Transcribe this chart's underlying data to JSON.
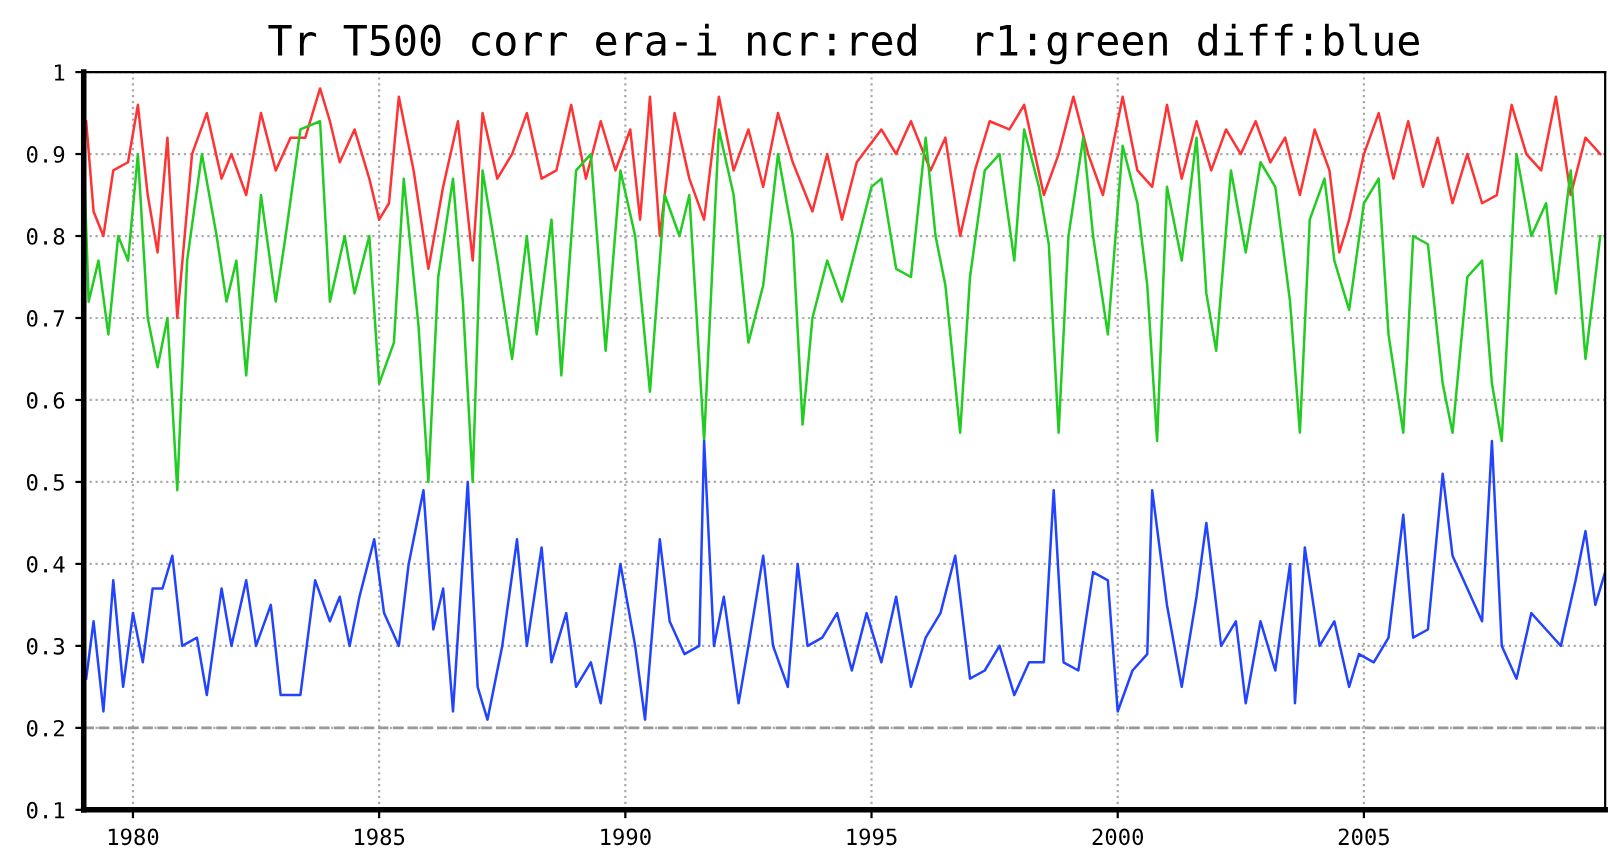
{
  "chart_data": {
    "type": "line",
    "title": "Tr T500 corr era-i ncr:red  r1:green diff:blue",
    "xlim": [
      1979,
      2009.9
    ],
    "ylim": [
      0.1,
      1
    ],
    "xticks": [
      1980,
      1985,
      1990,
      1995,
      2000,
      2005
    ],
    "yticks": [
      0.1,
      0.2,
      0.3,
      0.4,
      0.5,
      0.6,
      0.7,
      0.8,
      0.9,
      1
    ],
    "grid": true,
    "line_style": "solid",
    "marker": "none",
    "ref_lines": [
      {
        "axis": "y",
        "value": 0.2,
        "color": "#999999",
        "line_style": "dashed"
      }
    ],
    "series": [
      {
        "color": "#ff3333",
        "x": [
          1979.05,
          1979.2,
          1979.4,
          1979.6,
          1979.9,
          1980.1,
          1980.3,
          1980.5,
          1980.7,
          1980.9,
          1981.2,
          1981.5,
          1981.8,
          1982.0,
          1982.3,
          1982.6,
          1982.9,
          1983.2,
          1983.5,
          1983.8,
          1984.0,
          1984.2,
          1984.5,
          1984.8,
          1985.0,
          1985.2,
          1985.4,
          1985.7,
          1986.0,
          1986.3,
          1986.6,
          1986.9,
          1987.1,
          1987.4,
          1987.7,
          1988.0,
          1988.3,
          1988.6,
          1988.9,
          1989.2,
          1989.5,
          1989.8,
          1990.1,
          1990.3,
          1990.5,
          1990.7,
          1991.0,
          1991.3,
          1991.6,
          1991.9,
          1992.2,
          1992.5,
          1992.8,
          1993.1,
          1993.4,
          1993.8,
          1994.1,
          1994.4,
          1994.7,
          1995.2,
          1995.5,
          1995.8,
          1996.2,
          1996.5,
          1996.8,
          1997.1,
          1997.4,
          1997.8,
          1998.1,
          1998.5,
          1998.8,
          1999.1,
          1999.4,
          1999.7,
          2000.1,
          2000.4,
          2000.7,
          2001.0,
          2001.3,
          2001.6,
          2001.9,
          2002.2,
          2002.5,
          2002.8,
          2003.1,
          2003.4,
          2003.7,
          2004.0,
          2004.3,
          2004.5,
          2004.7,
          2005.0,
          2005.3,
          2005.6,
          2005.9,
          2006.2,
          2006.5,
          2006.8,
          2007.1,
          2007.4,
          2007.7,
          2008.0,
          2008.3,
          2008.6,
          2008.9,
          2009.2,
          2009.5,
          2009.8
        ],
        "values": [
          0.94,
          0.83,
          0.8,
          0.88,
          0.89,
          0.96,
          0.85,
          0.78,
          0.92,
          0.7,
          0.9,
          0.95,
          0.87,
          0.9,
          0.85,
          0.95,
          0.88,
          0.92,
          0.92,
          0.98,
          0.94,
          0.89,
          0.93,
          0.87,
          0.82,
          0.84,
          0.97,
          0.88,
          0.76,
          0.86,
          0.94,
          0.77,
          0.95,
          0.87,
          0.9,
          0.95,
          0.87,
          0.88,
          0.96,
          0.87,
          0.94,
          0.88,
          0.93,
          0.82,
          0.97,
          0.8,
          0.95,
          0.87,
          0.82,
          0.97,
          0.88,
          0.93,
          0.86,
          0.95,
          0.89,
          0.83,
          0.9,
          0.82,
          0.89,
          0.93,
          0.9,
          0.94,
          0.88,
          0.92,
          0.8,
          0.88,
          0.94,
          0.93,
          0.96,
          0.85,
          0.9,
          0.97,
          0.9,
          0.85,
          0.97,
          0.88,
          0.86,
          0.96,
          0.87,
          0.94,
          0.88,
          0.93,
          0.9,
          0.94,
          0.89,
          0.92,
          0.85,
          0.93,
          0.88,
          0.78,
          0.82,
          0.9,
          0.95,
          0.87,
          0.94,
          0.86,
          0.92,
          0.84,
          0.9,
          0.84,
          0.85,
          0.96,
          0.9,
          0.88,
          0.97,
          0.85,
          0.92,
          0.9
        ]
      },
      {
        "color": "#22cc22",
        "x": [
          1979.0,
          1979.1,
          1979.3,
          1979.5,
          1979.7,
          1979.9,
          1980.1,
          1980.3,
          1980.5,
          1980.7,
          1980.9,
          1981.1,
          1981.4,
          1981.7,
          1981.9,
          1982.1,
          1982.3,
          1982.6,
          1982.9,
          1983.1,
          1983.4,
          1983.8,
          1984.0,
          1984.3,
          1984.5,
          1984.8,
          1985.0,
          1985.3,
          1985.5,
          1985.8,
          1986.0,
          1986.2,
          1986.5,
          1986.7,
          1986.9,
          1987.1,
          1987.4,
          1987.7,
          1988.0,
          1988.2,
          1988.5,
          1988.7,
          1989.0,
          1989.3,
          1989.6,
          1989.9,
          1990.2,
          1990.5,
          1990.8,
          1991.1,
          1991.3,
          1991.6,
          1991.9,
          1992.2,
          1992.5,
          1992.8,
          1993.1,
          1993.4,
          1993.6,
          1993.8,
          1994.1,
          1994.4,
          1994.7,
          1995.0,
          1995.2,
          1995.5,
          1995.8,
          1996.1,
          1996.3,
          1996.5,
          1996.8,
          1997.0,
          1997.3,
          1997.6,
          1997.9,
          1998.1,
          1998.4,
          1998.6,
          1998.8,
          1999.0,
          1999.3,
          1999.5,
          1999.8,
          2000.1,
          2000.4,
          2000.6,
          2000.8,
          2001.0,
          2001.3,
          2001.6,
          2001.8,
          2002.0,
          2002.3,
          2002.6,
          2002.9,
          2003.2,
          2003.5,
          2003.7,
          2003.9,
          2004.2,
          2004.4,
          2004.7,
          2005.0,
          2005.3,
          2005.5,
          2005.8,
          2006.0,
          2006.3,
          2006.6,
          2006.8,
          2007.1,
          2007.4,
          2007.6,
          2007.8,
          2008.1,
          2008.4,
          2008.7,
          2008.9,
          2009.2,
          2009.5,
          2009.8
        ],
        "values": [
          0.9,
          0.72,
          0.77,
          0.68,
          0.8,
          0.77,
          0.9,
          0.7,
          0.64,
          0.7,
          0.49,
          0.77,
          0.9,
          0.8,
          0.72,
          0.77,
          0.63,
          0.85,
          0.72,
          0.8,
          0.93,
          0.94,
          0.72,
          0.8,
          0.73,
          0.8,
          0.62,
          0.67,
          0.87,
          0.69,
          0.5,
          0.75,
          0.87,
          0.72,
          0.5,
          0.88,
          0.77,
          0.65,
          0.8,
          0.68,
          0.82,
          0.63,
          0.88,
          0.9,
          0.66,
          0.88,
          0.8,
          0.61,
          0.85,
          0.8,
          0.85,
          0.55,
          0.93,
          0.85,
          0.67,
          0.74,
          0.9,
          0.8,
          0.57,
          0.7,
          0.77,
          0.72,
          0.79,
          0.86,
          0.87,
          0.76,
          0.75,
          0.92,
          0.8,
          0.74,
          0.56,
          0.75,
          0.88,
          0.9,
          0.77,
          0.93,
          0.86,
          0.79,
          0.56,
          0.8,
          0.92,
          0.8,
          0.68,
          0.91,
          0.84,
          0.74,
          0.55,
          0.86,
          0.77,
          0.92,
          0.73,
          0.66,
          0.88,
          0.78,
          0.89,
          0.86,
          0.72,
          0.56,
          0.82,
          0.87,
          0.77,
          0.71,
          0.84,
          0.87,
          0.68,
          0.56,
          0.8,
          0.79,
          0.62,
          0.56,
          0.75,
          0.77,
          0.62,
          0.55,
          0.9,
          0.8,
          0.84,
          0.73,
          0.88,
          0.65,
          0.8
        ]
      },
      {
        "color": "#2244ff",
        "x": [
          1979.05,
          1979.2,
          1979.4,
          1979.6,
          1979.8,
          1980.0,
          1980.2,
          1980.4,
          1980.6,
          1980.8,
          1981.0,
          1981.3,
          1981.5,
          1981.8,
          1982.0,
          1982.3,
          1982.5,
          1982.8,
          1983.0,
          1983.4,
          1983.7,
          1984.0,
          1984.2,
          1984.4,
          1984.6,
          1984.9,
          1985.1,
          1985.4,
          1985.6,
          1985.9,
          1986.1,
          1986.3,
          1986.5,
          1986.8,
          1987.0,
          1987.2,
          1987.5,
          1987.8,
          1988.0,
          1988.3,
          1988.5,
          1988.8,
          1989.0,
          1989.3,
          1989.5,
          1989.9,
          1990.2,
          1990.4,
          1990.7,
          1990.9,
          1991.2,
          1991.5,
          1991.6,
          1991.8,
          1992.0,
          1992.3,
          1992.5,
          1992.8,
          1993.0,
          1993.3,
          1993.5,
          1993.7,
          1994.0,
          1994.3,
          1994.6,
          1994.9,
          1995.2,
          1995.5,
          1995.8,
          1996.1,
          1996.4,
          1996.7,
          1997.0,
          1997.3,
          1997.6,
          1997.9,
          1998.2,
          1998.5,
          1998.7,
          1998.9,
          1999.2,
          1999.5,
          1999.8,
          2000.0,
          2000.3,
          2000.6,
          2000.7,
          2001.0,
          2001.3,
          2001.6,
          2001.8,
          2002.1,
          2002.4,
          2002.6,
          2002.9,
          2003.2,
          2003.5,
          2003.6,
          2003.8,
          2004.1,
          2004.4,
          2004.7,
          2004.9,
          2005.2,
          2005.5,
          2005.8,
          2006.0,
          2006.3,
          2006.6,
          2006.8,
          2007.1,
          2007.4,
          2007.6,
          2007.8,
          2008.1,
          2008.4,
          2008.7,
          2009.0,
          2009.3,
          2009.5,
          2009.7,
          2009.9
        ],
        "values": [
          0.26,
          0.33,
          0.22,
          0.38,
          0.25,
          0.34,
          0.28,
          0.37,
          0.37,
          0.41,
          0.3,
          0.31,
          0.24,
          0.37,
          0.3,
          0.38,
          0.3,
          0.35,
          0.24,
          0.24,
          0.38,
          0.33,
          0.36,
          0.3,
          0.36,
          0.43,
          0.34,
          0.3,
          0.4,
          0.49,
          0.32,
          0.37,
          0.22,
          0.5,
          0.25,
          0.21,
          0.3,
          0.43,
          0.3,
          0.42,
          0.28,
          0.34,
          0.25,
          0.28,
          0.23,
          0.4,
          0.3,
          0.21,
          0.43,
          0.33,
          0.29,
          0.3,
          0.55,
          0.3,
          0.36,
          0.23,
          0.3,
          0.41,
          0.3,
          0.25,
          0.4,
          0.3,
          0.31,
          0.34,
          0.27,
          0.34,
          0.28,
          0.36,
          0.25,
          0.31,
          0.34,
          0.41,
          0.26,
          0.27,
          0.3,
          0.24,
          0.28,
          0.28,
          0.49,
          0.28,
          0.27,
          0.39,
          0.38,
          0.22,
          0.27,
          0.29,
          0.49,
          0.35,
          0.25,
          0.36,
          0.45,
          0.3,
          0.33,
          0.23,
          0.33,
          0.27,
          0.4,
          0.23,
          0.42,
          0.3,
          0.33,
          0.25,
          0.29,
          0.28,
          0.31,
          0.46,
          0.31,
          0.32,
          0.51,
          0.41,
          0.37,
          0.33,
          0.55,
          0.3,
          0.26,
          0.34,
          0.32,
          0.3,
          0.38,
          0.44,
          0.35,
          0.39
        ]
      }
    ]
  }
}
